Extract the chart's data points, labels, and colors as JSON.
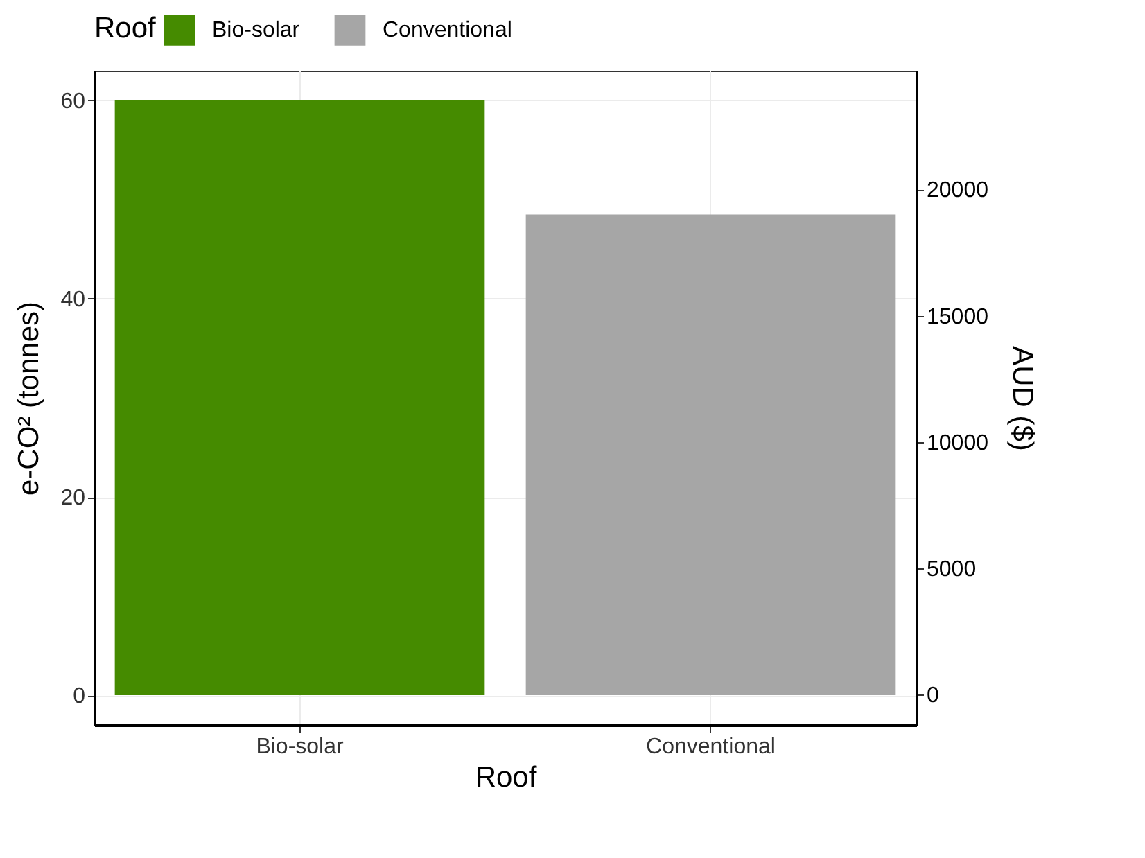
{
  "chart_data": {
    "type": "bar",
    "categories": [
      "Bio-solar",
      "Conventional"
    ],
    "series": [
      {
        "name": "Bio-solar",
        "color": "#458b00",
        "values": [
          60,
          null
        ]
      },
      {
        "name": "Conventional",
        "color": "#a6a6a6",
        "values": [
          null,
          48.5
        ]
      }
    ],
    "xlabel": "Roof",
    "ylabel": "e-CO² (tonnes)",
    "y2label": "AUD ($)",
    "legend_title": "Roof",
    "legend": "top",
    "ylim": [
      -3,
      63
    ],
    "yticks": [
      0,
      20,
      40,
      60
    ],
    "y2lim": [
      -1200,
      24700
    ],
    "y2ticks": [
      0,
      5000,
      10000,
      15000,
      20000
    ],
    "grid": true
  }
}
